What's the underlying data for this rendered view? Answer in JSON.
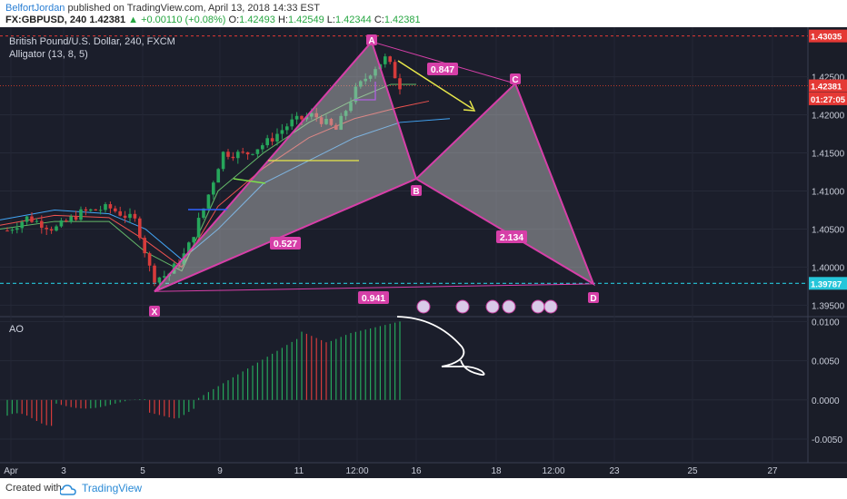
{
  "header": {
    "author": "BelfortJordan",
    "published": "published on TradingView.com, April 13, 2018 14:33 EST",
    "symbol": "FX:GBPUSD, 240",
    "last": "1.42381",
    "change": "▲ +0.00110 (+0.08%)",
    "o_label": "O:",
    "o_value": "1.42493",
    "h_label": "H:",
    "h_value": "1.42549",
    "l_label": "L:",
    "l_value": "1.42344",
    "c_label": "C:",
    "c_value": "1.42381"
  },
  "chart_data": [
    {
      "type": "candlestick",
      "title": "British Pound/U.S. Dollar, 240, FXCM",
      "indicator": "Alligator (13, 8, 5)",
      "ylim": [
        1.3935,
        1.4315
      ],
      "y_ticks": [
        "1.42500",
        "1.42000",
        "1.41500",
        "1.41000",
        "1.40500",
        "1.40000",
        "1.39500"
      ],
      "y_tick_values": [
        1.425,
        1.42,
        1.415,
        1.41,
        1.405,
        1.4,
        1.395
      ],
      "price_tags": [
        {
          "label": "1.43035",
          "value": 1.43035,
          "color": "#e53935"
        },
        {
          "label": "1.42381",
          "value": 1.42381,
          "color": "#e53935"
        },
        {
          "label": "01:27:05",
          "value": 1.4221,
          "color": "#e53935"
        },
        {
          "label": "1.39787",
          "value": 1.39787,
          "color": "#26c6da"
        }
      ],
      "x_ticks": [
        "Apr",
        "3",
        "5",
        "9",
        "11",
        "12:00",
        "16",
        "18",
        "12:00",
        "23",
        "25",
        "27"
      ],
      "harmonic_pattern": {
        "points": [
          {
            "label": "X",
            "x": "Apr 5",
            "y": 1.3968
          },
          {
            "label": "A",
            "x": "Apr 12",
            "y": 1.4296
          },
          {
            "label": "B",
            "x": "Apr 16",
            "y": 1.4116
          },
          {
            "label": "C",
            "x": "Apr 19",
            "y": 1.4241
          },
          {
            "label": "D",
            "x": "Apr 22",
            "y": 1.3978
          }
        ],
        "ratios": [
          "0.527",
          "0.847",
          "2.134",
          "0.941"
        ]
      }
    },
    {
      "type": "bar",
      "title": "AO",
      "ylim": [
        -0.008,
        0.0105
      ],
      "y_ticks": [
        "0.0100",
        "0.0050",
        "0.0000",
        "-0.0050"
      ],
      "y_tick_values": [
        0.01,
        0.005,
        0.0,
        -0.005
      ]
    }
  ],
  "footer": {
    "created": "Created with",
    "brand": "TradingView"
  }
}
